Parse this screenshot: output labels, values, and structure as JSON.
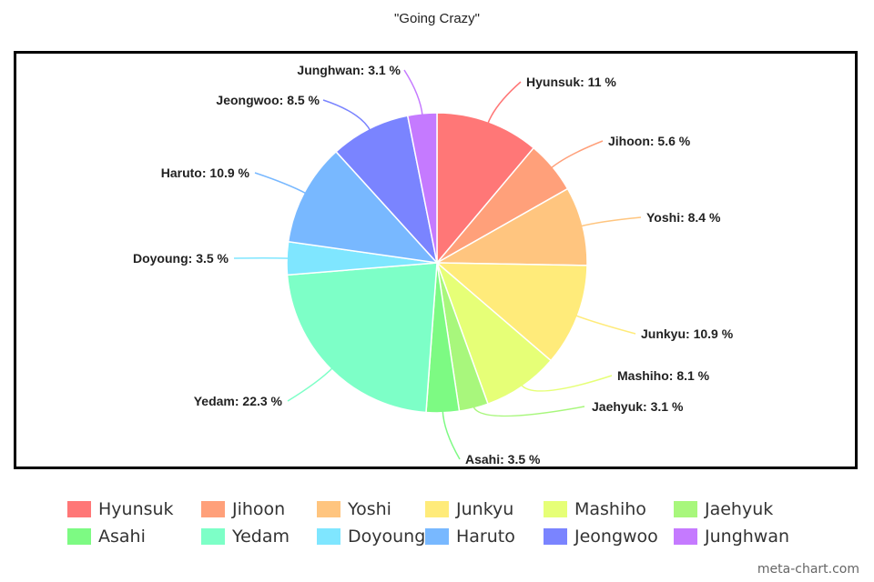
{
  "chart_data": {
    "type": "pie",
    "title": "\"Going Crazy\"",
    "slices": [
      {
        "name": "Hyunsuk",
        "value": 11,
        "label": "Hyunsuk: 11 %",
        "color": "#ff7777"
      },
      {
        "name": "Jihoon",
        "value": 5.6,
        "label": "Jihoon: 5.6 %",
        "color": "#ffa07a"
      },
      {
        "name": "Yoshi",
        "value": 8.4,
        "label": "Yoshi: 8.4 %",
        "color": "#ffc57f"
      },
      {
        "name": "Junkyu",
        "value": 10.9,
        "label": "Junkyu: 10.9 %",
        "color": "#ffeb7a"
      },
      {
        "name": "Mashiho",
        "value": 8.1,
        "label": "Mashiho: 8.1 %",
        "color": "#e6ff77"
      },
      {
        "name": "Jaehyuk",
        "value": 3.1,
        "label": "Jaehyuk: 3.1 %",
        "color": "#a8f77c"
      },
      {
        "name": "Asahi",
        "value": 3.5,
        "label": "Asahi: 3.5 %",
        "color": "#7dfa83"
      },
      {
        "name": "Yedam",
        "value": 22.3,
        "label": "Yedam: 22.3 %",
        "color": "#7dffc7"
      },
      {
        "name": "Doyoung",
        "value": 3.5,
        "label": "Doyoung: 3.5 %",
        "color": "#7fe6ff"
      },
      {
        "name": "Haruto",
        "value": 10.9,
        "label": "Haruto: 10.9 %",
        "color": "#78b8ff"
      },
      {
        "name": "Jeongwoo",
        "value": 8.5,
        "label": "Jeongwoo: 8.5 %",
        "color": "#7a84ff"
      },
      {
        "name": "Junghwan",
        "value": 3.1,
        "label": "Junghwan: 3.1 %",
        "color": "#c57aff"
      }
    ],
    "legend_position": "bottom"
  },
  "watermark": "meta-chart.com"
}
